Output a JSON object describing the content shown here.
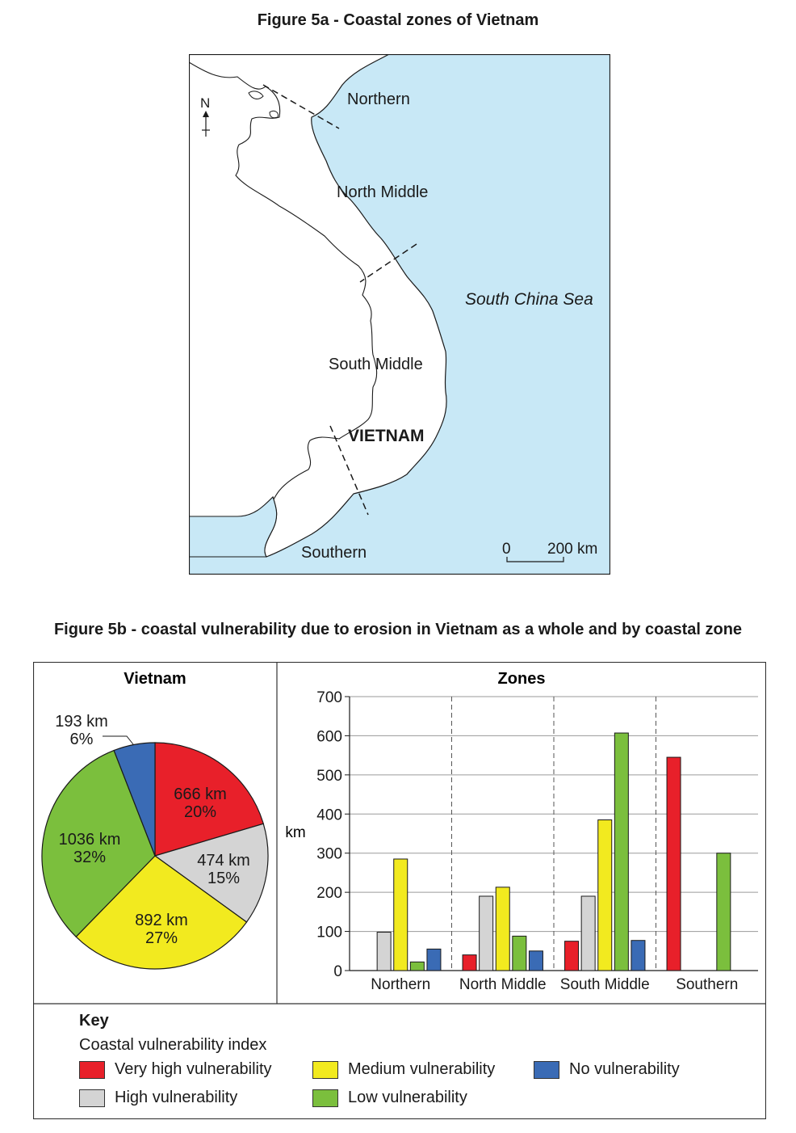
{
  "figure_a": {
    "title": "Figure 5a - Coastal zones of Vietnam",
    "labels": {
      "northern": "Northern",
      "north_middle": "North Middle",
      "south_middle": "South Middle",
      "southern": "Southern",
      "country": "VIETNAM",
      "sea": "South China Sea",
      "north": "N",
      "scale_zero": "0",
      "scale_distance": "200 km"
    },
    "colors": {
      "sea": "#c8e8f6",
      "land": "#ffffff"
    }
  },
  "figure_b": {
    "title": "Figure 5b - coastal vulnerability due to erosion in Vietnam as a whole and by coastal zone",
    "key": {
      "title": "Key",
      "subtitle": "Coastal vulnerability index",
      "items": [
        {
          "label": "Very high vulnerability",
          "color": "#e8202a"
        },
        {
          "label": "High vulnerability",
          "color": "#d4d4d4"
        },
        {
          "label": "Medium vulnerability",
          "color": "#f2ea1f"
        },
        {
          "label": "Low vulnerability",
          "color": "#7bbf3d"
        },
        {
          "label": "No vulnerability",
          "color": "#3a6bb5"
        }
      ]
    }
  },
  "chart_data": [
    {
      "type": "pie",
      "title": "Vietnam",
      "slices": [
        {
          "category": "Very high vulnerability",
          "value": 666,
          "value_label": "666 km",
          "percent_label": "20%",
          "color": "#e8202a"
        },
        {
          "category": "High vulnerability",
          "value": 474,
          "value_label": "474 km",
          "percent_label": "15%",
          "color": "#d4d4d4"
        },
        {
          "category": "Medium vulnerability",
          "value": 892,
          "value_label": "892 km",
          "percent_label": "27%",
          "color": "#f2ea1f"
        },
        {
          "category": "Low vulnerability",
          "value": 1036,
          "value_label": "1036 km",
          "percent_label": "32%",
          "color": "#7bbf3d"
        },
        {
          "category": "No vulnerability",
          "value": 193,
          "value_label": "193 km",
          "percent_label": "6%",
          "color": "#3a6bb5"
        }
      ]
    },
    {
      "type": "bar",
      "title": "Zones",
      "ylabel": "km",
      "ylim": [
        0,
        700
      ],
      "yticks": [
        0,
        100,
        200,
        300,
        400,
        500,
        600,
        700
      ],
      "grid": true,
      "categories": [
        "Northern",
        "North Middle",
        "South Middle",
        "Southern"
      ],
      "series": [
        {
          "name": "Very high vulnerability",
          "color": "#e8202a",
          "values": [
            0,
            40,
            75,
            545
          ]
        },
        {
          "name": "High vulnerability",
          "color": "#d4d4d4",
          "values": [
            98,
            190,
            190,
            0
          ]
        },
        {
          "name": "Medium vulnerability",
          "color": "#f2ea1f",
          "values": [
            285,
            213,
            385,
            0
          ]
        },
        {
          "name": "Low vulnerability",
          "color": "#7bbf3d",
          "values": [
            22,
            88,
            607,
            300
          ]
        },
        {
          "name": "No vulnerability",
          "color": "#3a6bb5",
          "values": [
            55,
            50,
            77,
            0
          ]
        }
      ]
    }
  ]
}
